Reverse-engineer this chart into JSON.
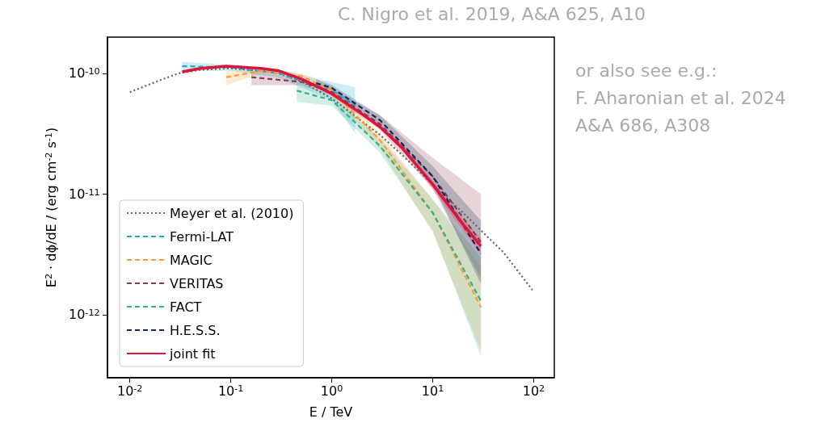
{
  "chart_data": {
    "type": "line",
    "xlabel": "E / TeV",
    "ylabel": "E$^{2}$ · dϕ/dE / (erg cm$^{-2}$ s$^{-1}$)",
    "log": "xy",
    "grid": false,
    "legend": "bottom left",
    "marker": "none",
    "xlim": [
      0.006,
      160
    ],
    "ylim": [
      3e-13,
      2e-10
    ],
    "xticks": [
      {
        "value": 0.01,
        "label": "10$^{-2}$"
      },
      {
        "value": 0.1,
        "label": "10$^{-1}$"
      },
      {
        "value": 1,
        "label": "10$^{0}$"
      },
      {
        "value": 10,
        "label": "10$^{1}$"
      },
      {
        "value": 100,
        "label": "10$^{2}$"
      }
    ],
    "yticks": [
      {
        "value": 1e-12,
        "label": "10$^{-12}$"
      },
      {
        "value": 1e-11,
        "label": "10$^{-11}$"
      },
      {
        "value": 1e-10,
        "label": "10$^{-10}$"
      }
    ],
    "series": [
      {
        "name": "Meyer et al. (2010)",
        "color": "#666666",
        "line_style": "dotted",
        "x": [
          0.01,
          0.02,
          0.03,
          0.05,
          0.1,
          0.2,
          0.3,
          0.5,
          1,
          2,
          3,
          5,
          10,
          20,
          30,
          50,
          100
        ],
        "values": [
          7e-11,
          8.8e-11,
          1e-10,
          1.07e-10,
          1.1e-10,
          1.05e-10,
          1e-10,
          8.6e-11,
          6.2e-11,
          4e-11,
          3.1e-11,
          2.1e-11,
          1.2e-11,
          7e-12,
          5e-12,
          3.3e-12,
          1.55e-12
        ]
      },
      {
        "name": "Fermi-LAT",
        "color": "#1fa7c9",
        "line_style": "dashed",
        "x": [
          0.033,
          0.1,
          0.3,
          1,
          1.7
        ],
        "values": [
          1.15e-10,
          1.12e-10,
          1e-10,
          7.2e-11,
          5.4e-11
        ],
        "lower": [
          1.05e-10,
          1.05e-10,
          9.2e-11,
          6e-11,
          3.2e-11
        ],
        "upper": [
          1.25e-10,
          1.18e-10,
          1.08e-10,
          8.5e-11,
          7.7e-11
        ]
      },
      {
        "name": "MAGIC",
        "color": "#ff9933",
        "line_style": "dashed",
        "x": [
          0.09,
          0.2,
          0.5,
          1,
          3,
          10,
          30
        ],
        "values": [
          9.3e-11,
          1.05e-10,
          9.5e-11,
          7.2e-11,
          2.8e-11,
          7e-12,
          1.15e-12
        ],
        "lower": [
          8e-11,
          1e-10,
          9e-11,
          6.6e-11,
          2.4e-11,
          4.8e-12,
          5e-13
        ],
        "upper": [
          1.05e-10,
          1.1e-10,
          1e-10,
          7.8e-11,
          3.2e-11,
          9e-12,
          2.5e-12
        ]
      },
      {
        "name": "VERITAS",
        "color": "#8b3a48",
        "line_style": "dashed",
        "x": [
          0.16,
          0.5,
          1,
          3,
          10,
          30
        ],
        "values": [
          9.3e-11,
          8.5e-11,
          7e-11,
          3.8e-11,
          1.4e-11,
          4e-12
        ],
        "lower": [
          8e-11,
          8e-11,
          6.5e-11,
          3.4e-11,
          1.1e-11,
          2e-12
        ],
        "upper": [
          1.05e-10,
          9e-11,
          7.5e-11,
          4.5e-11,
          2e-11,
          1e-11
        ]
      },
      {
        "name": "FACT",
        "color": "#33b08a",
        "line_style": "dashed",
        "x": [
          0.45,
          1,
          3,
          10,
          30
        ],
        "values": [
          7.2e-11,
          6e-11,
          2.5e-11,
          7e-12,
          1.3e-12
        ],
        "lower": [
          5.8e-11,
          5.4e-11,
          2.2e-11,
          5e-12,
          4.5e-13
        ],
        "upper": [
          8.5e-11,
          6.6e-11,
          2.9e-11,
          9e-12,
          3e-12
        ]
      },
      {
        "name": "H.E.S.S.",
        "color": "#0d2a5c",
        "line_style": "dashed",
        "x": [
          0.7,
          1,
          3,
          10,
          30
        ],
        "values": [
          8.3e-11,
          7.6e-11,
          4.1e-11,
          1.4e-11,
          3.2e-12
        ],
        "lower": [
          7.6e-11,
          7.2e-11,
          3.7e-11,
          1.2e-11,
          1.8e-12
        ],
        "upper": [
          9e-11,
          8e-11,
          4.5e-11,
          1.7e-11,
          6e-12
        ]
      },
      {
        "name": "joint fit",
        "color": "#dc143c",
        "line_style": "solid",
        "x": [
          0.033,
          0.05,
          0.09,
          0.2,
          0.3,
          0.5,
          1,
          2,
          3,
          5,
          10,
          20,
          30
        ],
        "values": [
          1.03e-10,
          1.1e-10,
          1.15e-10,
          1.1e-10,
          1.05e-10,
          9e-11,
          6.8e-11,
          4.6e-11,
          3.6e-11,
          2.4e-11,
          1.2e-11,
          5.6e-12,
          3.7e-12
        ],
        "lower": [
          1e-10,
          1.08e-10,
          1.13e-10,
          1.08e-10,
          1.03e-10,
          8.8e-11,
          6.6e-11,
          4.5e-11,
          3.5e-11,
          2.3e-11,
          1.1e-11,
          5e-12,
          3.2e-12
        ],
        "upper": [
          1.06e-10,
          1.12e-10,
          1.17e-10,
          1.12e-10,
          1.07e-10,
          9.2e-11,
          7e-11,
          4.7e-11,
          3.7e-11,
          2.5e-11,
          1.3e-11,
          6.2e-12,
          4.3e-12
        ]
      }
    ],
    "annotations": [
      "C. Nigro et al. 2019, A&A 625, A10",
      "or also see e.g.:",
      "F. Aharonian et al. 2024",
      "A&A 686, A308"
    ]
  }
}
